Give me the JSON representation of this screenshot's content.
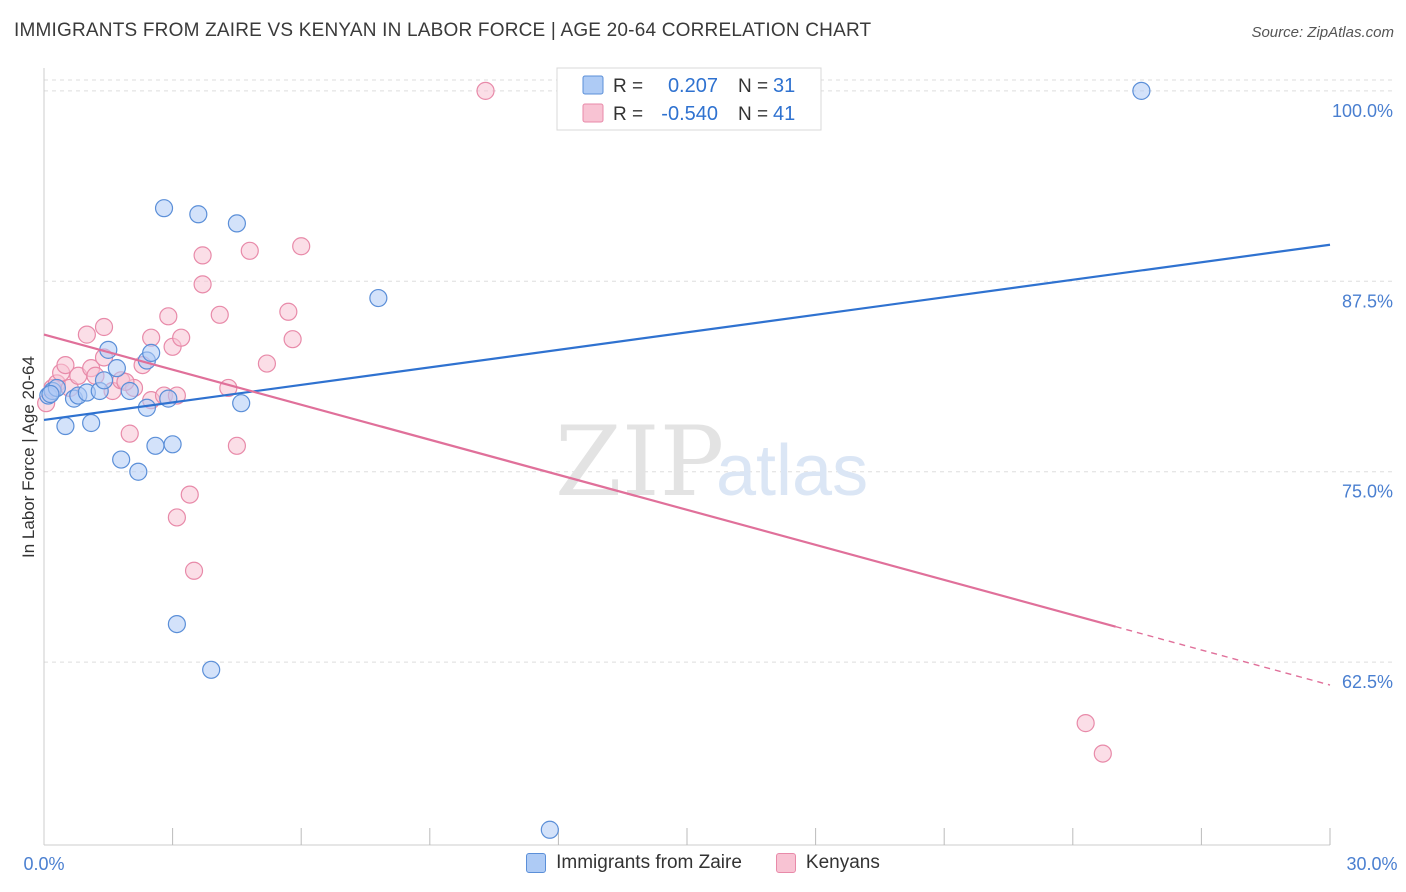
{
  "title": "IMMIGRANTS FROM ZAIRE VS KENYAN IN LABOR FORCE | AGE 20-64 CORRELATION CHART",
  "source": "Source: ZipAtlas.com",
  "watermark": {
    "zip": "ZIP",
    "atlas": "atlas"
  },
  "legend_box": [
    {
      "r_label": "R =",
      "r_value": "0.207",
      "n_label": "N =",
      "n_value": "31"
    },
    {
      "r_label": "R =",
      "r_value": "-0.540",
      "n_label": "N =",
      "n_value": "41"
    }
  ],
  "colors": {
    "zaire_fill": "#aecbf5",
    "zaire_stroke": "#5b8fd8",
    "zaire_line": "#2f72d0",
    "kenyan_fill": "#f8c3d3",
    "kenyan_stroke": "#e88aa9",
    "kenyan_line": "#e0709a",
    "tick_label": "#4a7fd0",
    "grid": "#dddddd"
  },
  "chart_data": {
    "type": "scatter",
    "title": "IMMIGRANTS FROM ZAIRE VS KENYAN IN LABOR FORCE | AGE 20-64 CORRELATION CHART",
    "xlabel": "",
    "ylabel": "In Labor Force | Age 20-64",
    "xlim": [
      0,
      30
    ],
    "ylim": [
      50.5,
      101.5
    ],
    "x_tick_labels": [
      "0.0%",
      "30.0%"
    ],
    "y_ticks": [
      100,
      87.5,
      75,
      62.5
    ],
    "y_tick_labels": [
      "100.0%",
      "87.5%",
      "75.0%",
      "62.5%"
    ],
    "grid": true,
    "legend": "top-center",
    "series": [
      {
        "name": "Immigrants from Zaire",
        "color": "#aecbf5",
        "points": [
          [
            0.1,
            80.0
          ],
          [
            0.2,
            80.3
          ],
          [
            0.3,
            80.5
          ],
          [
            0.5,
            78.0
          ],
          [
            0.7,
            79.8
          ],
          [
            0.8,
            80.0
          ],
          [
            1.0,
            80.2
          ],
          [
            1.1,
            78.2
          ],
          [
            1.3,
            80.3
          ],
          [
            1.4,
            81.0
          ],
          [
            1.5,
            83.0
          ],
          [
            1.7,
            81.8
          ],
          [
            1.8,
            75.8
          ],
          [
            2.0,
            80.3
          ],
          [
            2.2,
            75.0
          ],
          [
            2.4,
            82.3
          ],
          [
            2.4,
            79.2
          ],
          [
            2.5,
            82.8
          ],
          [
            2.6,
            76.7
          ],
          [
            2.8,
            92.3
          ],
          [
            2.9,
            79.8
          ],
          [
            3.0,
            76.8
          ],
          [
            3.6,
            91.9
          ],
          [
            3.1,
            65.0
          ],
          [
            3.9,
            62.0
          ],
          [
            4.5,
            91.3
          ],
          [
            4.6,
            79.5
          ],
          [
            7.8,
            86.4
          ],
          [
            25.6,
            100.0
          ],
          [
            11.8,
            51.5
          ],
          [
            0.15,
            80.1
          ]
        ]
      },
      {
        "name": "Kenyans",
        "color": "#f8c3d3",
        "points": [
          [
            0.05,
            79.5
          ],
          [
            0.2,
            80.5
          ],
          [
            0.3,
            80.8
          ],
          [
            0.4,
            81.5
          ],
          [
            0.5,
            82.0
          ],
          [
            0.6,
            80.5
          ],
          [
            0.8,
            81.3
          ],
          [
            1.0,
            84.0
          ],
          [
            1.1,
            81.8
          ],
          [
            1.2,
            81.3
          ],
          [
            1.4,
            82.5
          ],
          [
            1.4,
            84.5
          ],
          [
            1.6,
            80.3
          ],
          [
            1.8,
            81.0
          ],
          [
            2.0,
            77.5
          ],
          [
            2.1,
            80.5
          ],
          [
            2.3,
            82.0
          ],
          [
            2.5,
            79.7
          ],
          [
            2.5,
            83.8
          ],
          [
            2.8,
            80.0
          ],
          [
            2.9,
            85.2
          ],
          [
            3.0,
            83.2
          ],
          [
            3.1,
            80.0
          ],
          [
            3.1,
            72.0
          ],
          [
            3.2,
            83.8
          ],
          [
            3.4,
            73.5
          ],
          [
            3.5,
            68.5
          ],
          [
            3.7,
            89.2
          ],
          [
            3.7,
            87.3
          ],
          [
            4.3,
            80.5
          ],
          [
            4.1,
            85.3
          ],
          [
            4.5,
            76.7
          ],
          [
            4.8,
            89.5
          ],
          [
            5.2,
            82.1
          ],
          [
            5.7,
            85.5
          ],
          [
            5.8,
            83.7
          ],
          [
            6.0,
            89.8
          ],
          [
            10.3,
            100.0
          ],
          [
            24.3,
            58.5
          ],
          [
            24.7,
            56.5
          ],
          [
            1.9,
            80.9
          ]
        ]
      }
    ],
    "trend_lines": [
      {
        "series": "Immigrants from Zaire",
        "x": [
          0,
          30
        ],
        "y": [
          78.4,
          89.9
        ],
        "dashed_from": null
      },
      {
        "series": "Kenyans",
        "x": [
          0,
          30
        ],
        "y": [
          84.0,
          61.0
        ],
        "dashed_from": 25.0
      }
    ]
  }
}
